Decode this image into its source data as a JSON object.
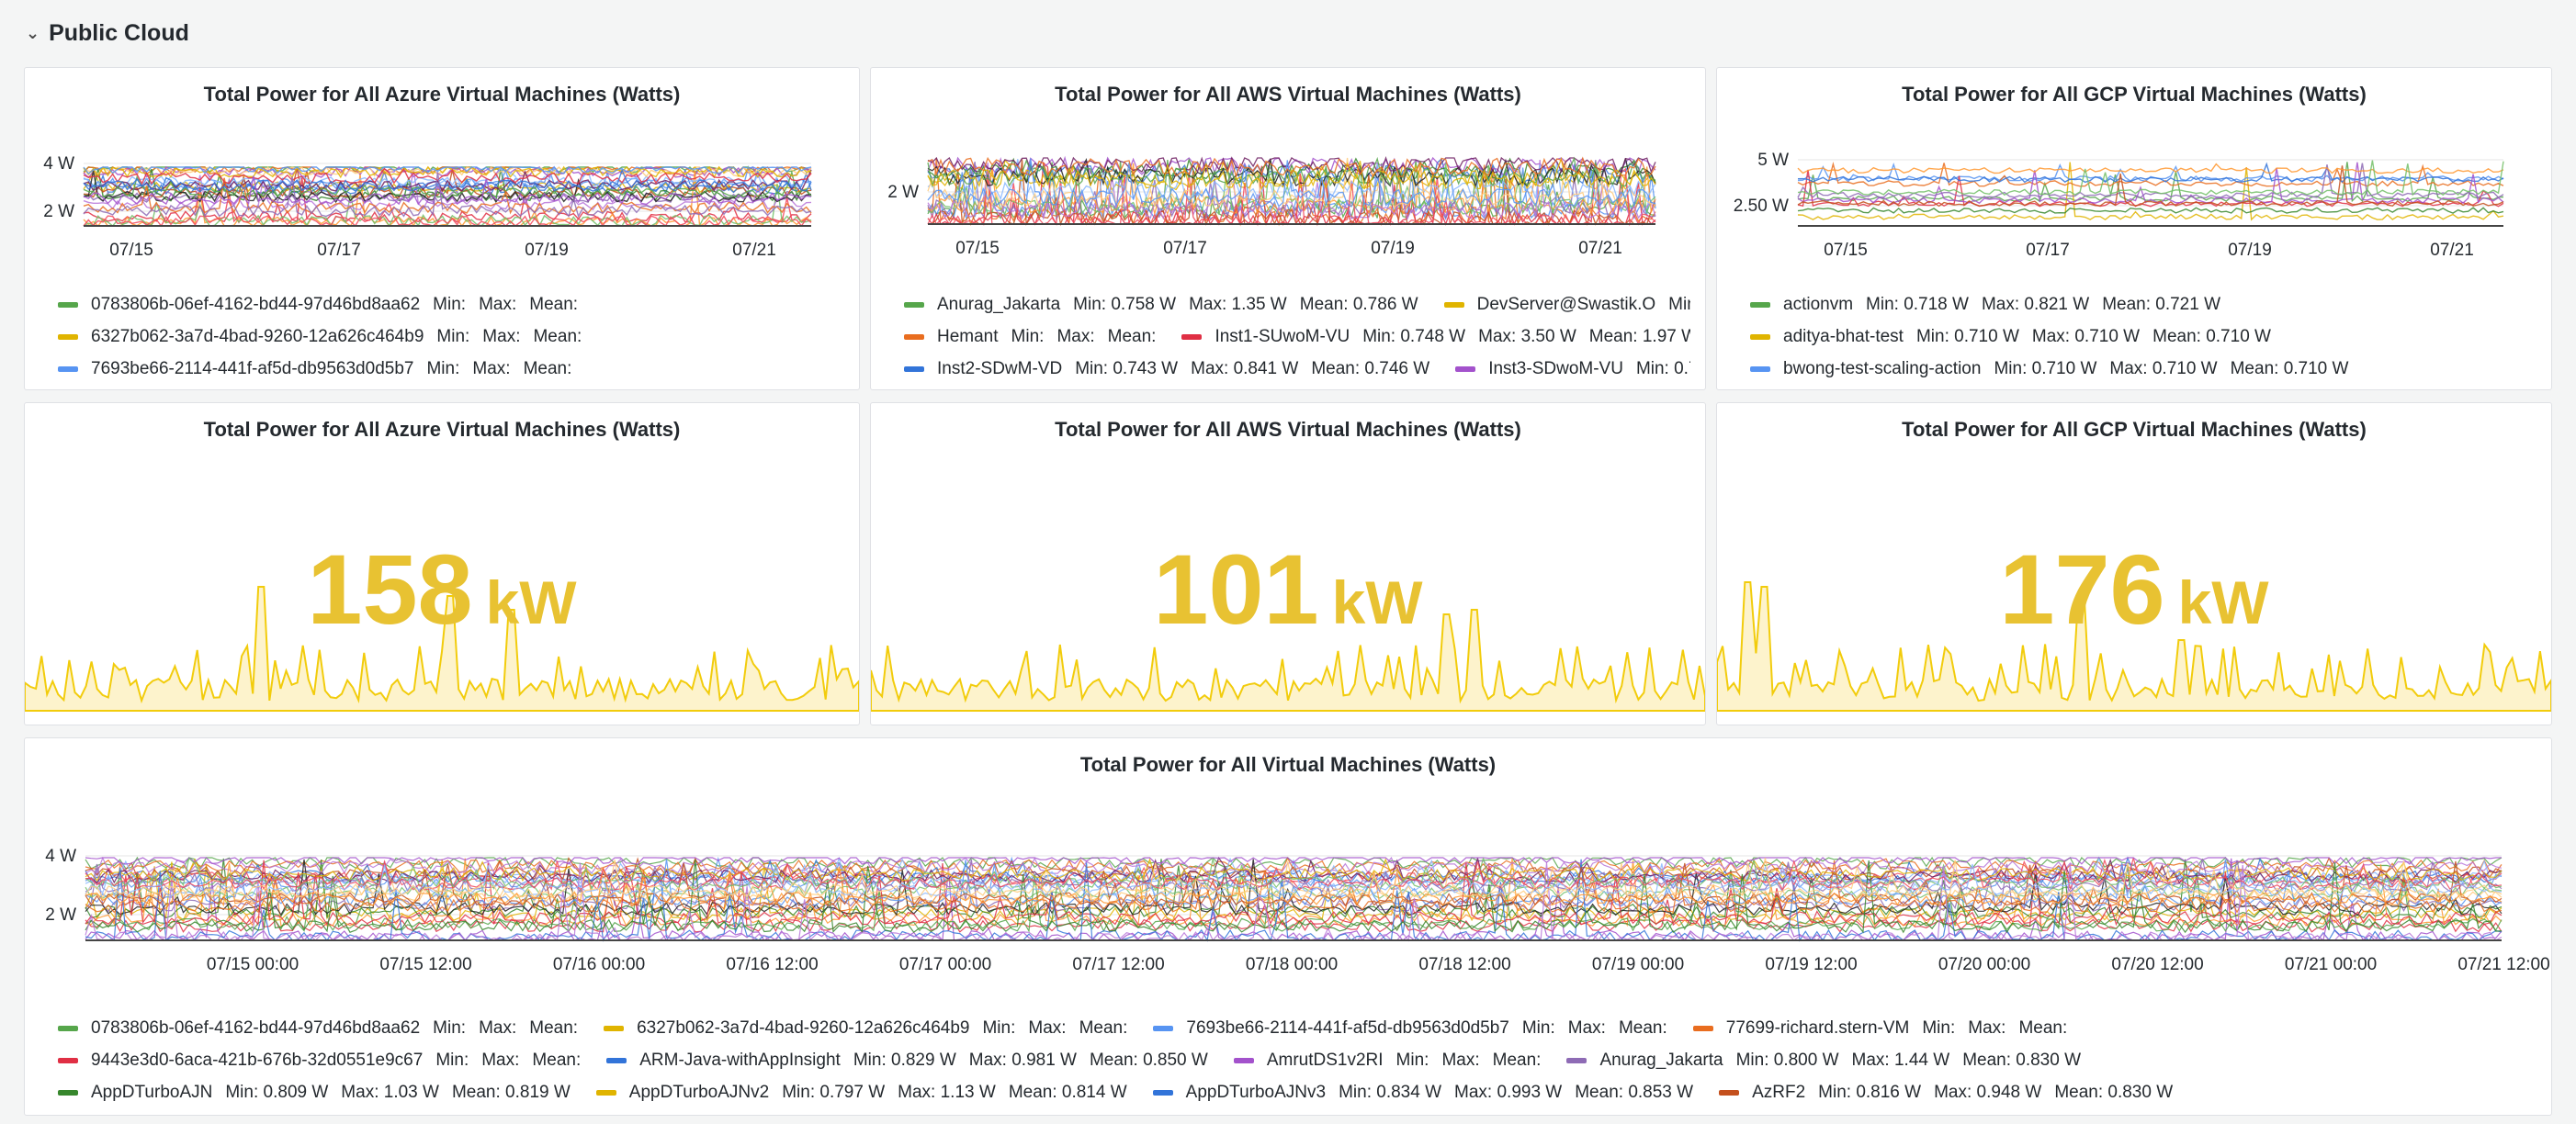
{
  "row": {
    "title": "Public Cloud"
  },
  "colors": {
    "green": "#56a64b",
    "yellow": "#e0b400",
    "blue": "#5794f2",
    "orange": "#e96d1f",
    "red": "#e02f44",
    "blue2": "#3274d9",
    "purple": "#a352cc",
    "purple2": "#8e6bb5",
    "darkgreen": "#37872d",
    "brown": "#c4501d",
    "stat": "#e8c232"
  },
  "panels": {
    "azure_ts": {
      "title": "Total Power for All Azure Virtual Machines (Watts)",
      "y_ticks": [
        "4 W",
        "2 W"
      ],
      "x_ticks": [
        "07/15",
        "07/17",
        "07/19",
        "07/21"
      ],
      "legend": [
        {
          "name": "0783806b-06ef-4162-bd44-97d46bd8aa62",
          "color": "#56a64b",
          "min": "",
          "max": "",
          "mean": ""
        },
        {
          "name": "6327b062-3a7d-4bad-9260-12a626c464b9",
          "color": "#e0b400",
          "min": "",
          "max": "",
          "mean": ""
        },
        {
          "name": "7693be66-2114-441f-af5d-db9563d0d5b7",
          "color": "#5794f2",
          "min": "",
          "max": "",
          "mean": ""
        }
      ]
    },
    "aws_ts": {
      "title": "Total Power for All AWS Virtual Machines (Watts)",
      "y_ticks": [
        "2 W"
      ],
      "x_ticks": [
        "07/15",
        "07/17",
        "07/19",
        "07/21"
      ],
      "legend_rows": [
        [
          {
            "name": "Anurag_Jakarta",
            "color": "#56a64b",
            "min": "0.758 W",
            "max": "1.35 W",
            "mean": "0.786 W"
          },
          {
            "name": "DevServer@Swastik.O",
            "color": "#e0b400",
            "min": "",
            "max": "",
            "mean": "",
            "truncated": true
          }
        ],
        [
          {
            "name": "Hemant",
            "color": "#e96d1f",
            "min": "",
            "max": "",
            "mean": ""
          },
          {
            "name": "Inst1-SUwoM-VU",
            "color": "#e02f44",
            "min": "0.748 W",
            "max": "3.50 W",
            "mean": "1.97 W"
          }
        ],
        [
          {
            "name": "Inst2-SDwM-VD",
            "color": "#3274d9",
            "min": "0.743 W",
            "max": "0.841 W",
            "mean": "0.746 W"
          },
          {
            "name": "Inst3-SDwoM-VU",
            "color": "#a352cc",
            "min": "0.7",
            "max": "",
            "mean": "",
            "truncated": true
          }
        ]
      ]
    },
    "gcp_ts": {
      "title": "Total Power for All GCP Virtual Machines (Watts)",
      "y_ticks": [
        "5 W",
        "2.50 W"
      ],
      "x_ticks": [
        "07/15",
        "07/17",
        "07/19",
        "07/21"
      ],
      "legend": [
        {
          "name": "actionvm",
          "color": "#56a64b",
          "min": "0.718 W",
          "max": "0.821 W",
          "mean": "0.721 W"
        },
        {
          "name": "aditya-bhat-test",
          "color": "#e0b400",
          "min": "0.710 W",
          "max": "0.710 W",
          "mean": "0.710 W"
        },
        {
          "name": "bwong-test-scaling-action",
          "color": "#5794f2",
          "min": "0.710 W",
          "max": "0.710 W",
          "mean": "0.710 W"
        }
      ]
    },
    "azure_stat": {
      "title": "Total Power for All Azure Virtual Machines (Watts)",
      "value": "158",
      "unit": "kW"
    },
    "aws_stat": {
      "title": "Total Power for All AWS Virtual Machines (Watts)",
      "value": "101",
      "unit": "kW"
    },
    "gcp_stat": {
      "title": "Total Power for All GCP Virtual Machines (Watts)",
      "value": "176",
      "unit": "kW"
    },
    "all_ts": {
      "title": "Total Power for All Virtual Machines (Watts)",
      "y_ticks": [
        "4 W",
        "2 W"
      ],
      "x_ticks": [
        "07/15 00:00",
        "07/15 12:00",
        "07/16 00:00",
        "07/16 12:00",
        "07/17 00:00",
        "07/17 12:00",
        "07/18 00:00",
        "07/18 12:00",
        "07/19 00:00",
        "07/19 12:00",
        "07/20 00:00",
        "07/20 12:00",
        "07/21 00:00",
        "07/21 12:00"
      ],
      "legend_rows": [
        [
          {
            "name": "0783806b-06ef-4162-bd44-97d46bd8aa62",
            "color": "#56a64b",
            "min": "",
            "max": "",
            "mean": ""
          },
          {
            "name": "6327b062-3a7d-4bad-9260-12a626c464b9",
            "color": "#e0b400",
            "min": "",
            "max": "",
            "mean": ""
          },
          {
            "name": "7693be66-2114-441f-af5d-db9563d0d5b7",
            "color": "#5794f2",
            "min": "",
            "max": "",
            "mean": ""
          },
          {
            "name": "77699-richard.stern-VM",
            "color": "#e96d1f",
            "min": "",
            "max": "",
            "mean": ""
          }
        ],
        [
          {
            "name": "9443e3d0-6aca-421b-676b-32d0551e9c67",
            "color": "#e02f44",
            "min": "",
            "max": "",
            "mean": ""
          },
          {
            "name": "ARM-Java-withAppInsight",
            "color": "#3274d9",
            "min": "0.829 W",
            "max": "0.981 W",
            "mean": "0.850 W"
          },
          {
            "name": "AmrutDS1v2RI",
            "color": "#a352cc",
            "min": "",
            "max": "",
            "mean": ""
          },
          {
            "name": "Anurag_Jakarta",
            "color": "#8e6bb5",
            "min": "0.800 W",
            "max": "1.44 W",
            "mean": "0.830 W"
          }
        ],
        [
          {
            "name": "AppDTurboAJN",
            "color": "#37872d",
            "min": "0.809 W",
            "max": "1.03 W",
            "mean": "0.819 W"
          },
          {
            "name": "AppDTurboAJNv2",
            "color": "#e0b400",
            "min": "0.797 W",
            "max": "1.13 W",
            "mean": "0.814 W"
          },
          {
            "name": "AppDTurboAJNv3",
            "color": "#3274d9",
            "min": "0.834 W",
            "max": "0.993 W",
            "mean": "0.853 W"
          },
          {
            "name": "AzRF2",
            "color": "#c4501d",
            "min": "0.816 W",
            "max": "0.948 W",
            "mean": "0.830 W"
          }
        ]
      ]
    }
  },
  "labels": {
    "min": "Min:",
    "max": "Max:",
    "mean": "Mean:"
  }
}
